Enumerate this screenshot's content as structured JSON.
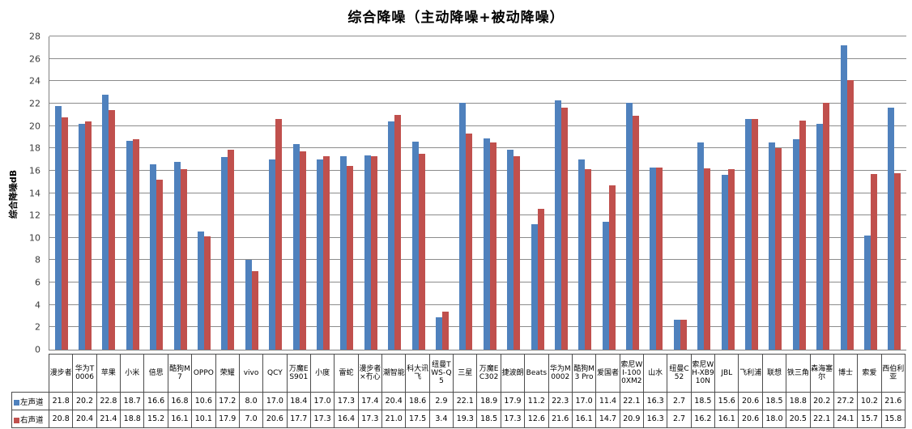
{
  "chart_data": {
    "type": "bar",
    "title": "综合降噪（主动降噪+被动降噪）",
    "xlabel": "",
    "ylabel": "综合降噪dB",
    "ylim": [
      0,
      28
    ],
    "ytick_step": 2,
    "grid": true,
    "legend_position": "table-row-headers",
    "categories": [
      "漫步者",
      "华为T0006",
      "苹果",
      "小米",
      "倍思",
      "酷狗M7",
      "OPPO",
      "荣耀",
      "vivo",
      "QCY",
      "万魔ES901",
      "小度",
      "雷蛇",
      "漫步者×冇心",
      "潮智能",
      "科大讯飞",
      "纽曼TWS-Q5",
      "三星",
      "万魔EC302",
      "捷波朗",
      "Beats",
      "华为M0002",
      "酷狗M3 Pro",
      "爱国者",
      "索尼WI-1000XM2",
      "山水",
      "纽曼C52",
      "索尼WH-XB910N",
      "JBL",
      "飞利浦",
      "联想",
      "铁三角",
      "森海塞尔",
      "博士",
      "索爱",
      "西伯利亚"
    ],
    "series": [
      {
        "name": "左声道",
        "color": "#4F81BD",
        "values": [
          21.8,
          20.2,
          22.8,
          18.7,
          16.6,
          16.8,
          10.6,
          17.2,
          8.0,
          17.0,
          18.4,
          17.0,
          17.3,
          17.4,
          20.4,
          18.6,
          2.9,
          22.1,
          18.9,
          17.9,
          11.2,
          22.3,
          17.0,
          11.4,
          22.1,
          16.3,
          2.7,
          18.5,
          15.6,
          20.6,
          18.5,
          18.8,
          20.2,
          27.2,
          10.2,
          21.6
        ]
      },
      {
        "name": "右声道",
        "color": "#C0504D",
        "values": [
          20.8,
          20.4,
          21.4,
          18.8,
          15.2,
          16.1,
          10.1,
          17.9,
          7.0,
          20.6,
          17.7,
          17.3,
          16.4,
          17.3,
          21.0,
          17.5,
          3.4,
          19.3,
          18.5,
          17.3,
          12.6,
          21.6,
          16.1,
          14.7,
          20.9,
          16.3,
          2.7,
          16.2,
          16.1,
          20.6,
          18.0,
          20.5,
          22.1,
          24.1,
          15.7,
          15.8
        ]
      }
    ]
  },
  "colors": {
    "bar_left": "#4F81BD",
    "bar_right": "#C0504D",
    "gridline": "#8c8c8c",
    "axis": "#808080",
    "table_border": "#4d4d4d",
    "background": "#ffffff",
    "text": "#000000"
  }
}
